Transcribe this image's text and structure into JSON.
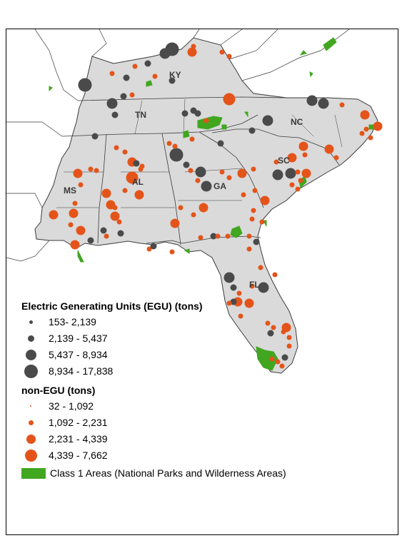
{
  "map": {
    "state_labels": [
      "KY",
      "TN",
      "NC",
      "SC",
      "MS",
      "AL",
      "GA",
      "FL"
    ],
    "colors": {
      "land": "#dadada",
      "water": "#ffffff",
      "borders": "#3a3a3a",
      "egu": "#4a4a4a",
      "non_egu": "#e4541a",
      "class1": "#41a620"
    }
  },
  "legend": {
    "egu_title": "Electric Generating Units (EGU) (tons)",
    "egu_classes": [
      "153- 2,139",
      "2,139 - 5,437",
      "5,437 - 8,934",
      "8,934 - 17,838"
    ],
    "non_egu_title": "non-EGU (tons)",
    "non_egu_classes": [
      "32 - 1,092",
      "1,092 - 2,231",
      "2,231 - 4,339",
      "4,339 - 7,662"
    ],
    "class1_label": "Class 1 Areas (National Parks and Wilderness Areas)"
  }
}
